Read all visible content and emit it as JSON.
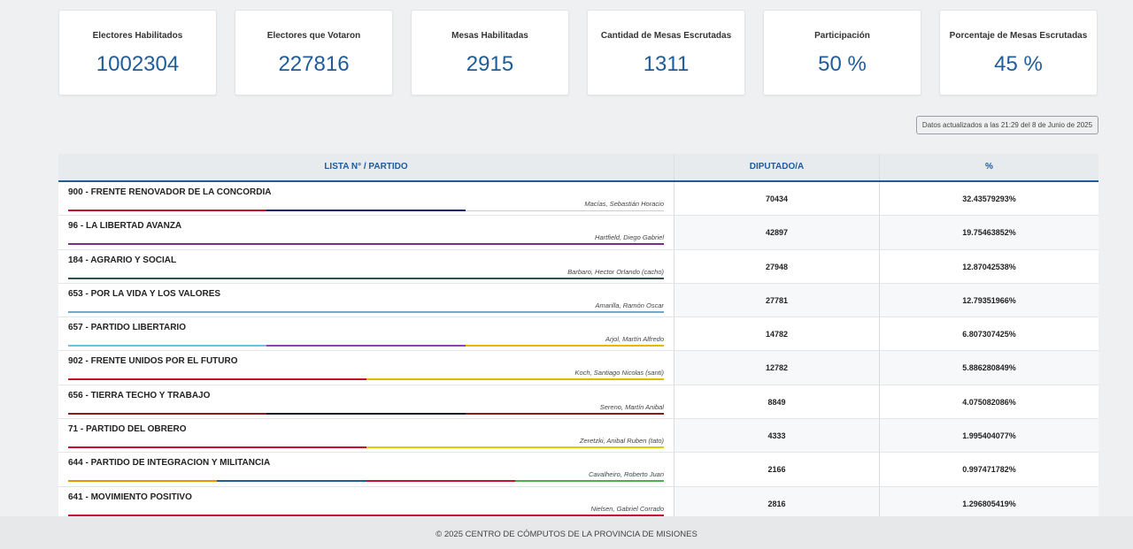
{
  "cards": [
    {
      "label": "Electores Habilitados",
      "value": "1002304"
    },
    {
      "label": "Electores que Votaron",
      "value": "227816"
    },
    {
      "label": "Mesas Habilitadas",
      "value": "2915"
    },
    {
      "label": "Cantidad de Mesas Escrutadas",
      "value": "1311"
    },
    {
      "label": "Participación",
      "value": "50 %"
    },
    {
      "label": "Porcentaje de Mesas Escrutadas",
      "value": "45 %"
    }
  ],
  "updated": "Datos actualizados a las 21:29 del 8 de Junio de 2025",
  "table": {
    "headers": [
      "LISTA N° / PARTIDO",
      "DIPUTADO/A",
      "%"
    ],
    "rows": [
      {
        "party": "900 - FRENTE RENOVADOR DE LA CONCORDIA",
        "candidate": "Macías, Sebastián Horacio",
        "votes": "70434",
        "pct": "32.43579293%",
        "colors": [
          "#c8102e",
          "#1a1a7a",
          "#ffffff"
        ]
      },
      {
        "party": "96 - LA LIBERTAD AVANZA",
        "candidate": "Hartfield, Diego Gabriel",
        "votes": "42897",
        "pct": "19.75463852%",
        "colors": [
          "#7b2d8e"
        ]
      },
      {
        "party": "184 - AGRARIO Y SOCIAL",
        "candidate": "Barbaro, Hector Orlando (cacho)",
        "votes": "27948",
        "pct": "12.87042538%",
        "colors": [
          "#2f4f4f"
        ]
      },
      {
        "party": "653 - POR LA VIDA Y LOS VALORES",
        "candidate": "Amarilla, Ramón Oscar",
        "votes": "27781",
        "pct": "12.79351966%",
        "colors": [
          "#6fa8c8"
        ]
      },
      {
        "party": "657 - PARTIDO LIBERTARIO",
        "candidate": "Arjol, Martín Alfredo",
        "votes": "14782",
        "pct": "6.807307425%",
        "colors": [
          "#6ec1e4",
          "#8e44ad",
          "#e6b800"
        ]
      },
      {
        "party": "902 - FRENTE UNIDOS POR EL FUTURO",
        "candidate": "Koch, Santiago Nicolas (santi)",
        "votes": "12782",
        "pct": "5.886280849%",
        "colors": [
          "#c8102e",
          "#e6b800"
        ]
      },
      {
        "party": "656 - TIERRA TECHO Y TRABAJO",
        "candidate": "Sereno, Martín Anibal",
        "votes": "8849",
        "pct": "4.075082086%",
        "colors": [
          "#8b1a1a",
          "#1a1a2e",
          "#8b1a1a"
        ]
      },
      {
        "party": "71 - PARTIDO DEL OBRERO",
        "candidate": "Zeretzki, Anibal Ruben (tato)",
        "votes": "4333",
        "pct": "1.995404077%",
        "colors": [
          "#c8102e",
          "#e6c800"
        ]
      },
      {
        "party": "644 - PARTIDO DE INTEGRACION Y MILITANCIA",
        "candidate": "Cavalheiro, Roberto Juan",
        "votes": "2166",
        "pct": "0.997471782%",
        "colors": [
          "#e69500",
          "#1f5c99",
          "#c8102e",
          "#4caf50"
        ]
      },
      {
        "party": "641 - MOVIMIENTO POSITIVO",
        "candidate": "Nielsen, Gabriel Corrado",
        "votes": "2816",
        "pct": "1.296805419%",
        "colors": [
          "#c8102e"
        ]
      }
    ]
  },
  "footer": "© 2025 CENTRO DE CÓMPUTOS DE LA PROVINCIA DE MISIONES"
}
